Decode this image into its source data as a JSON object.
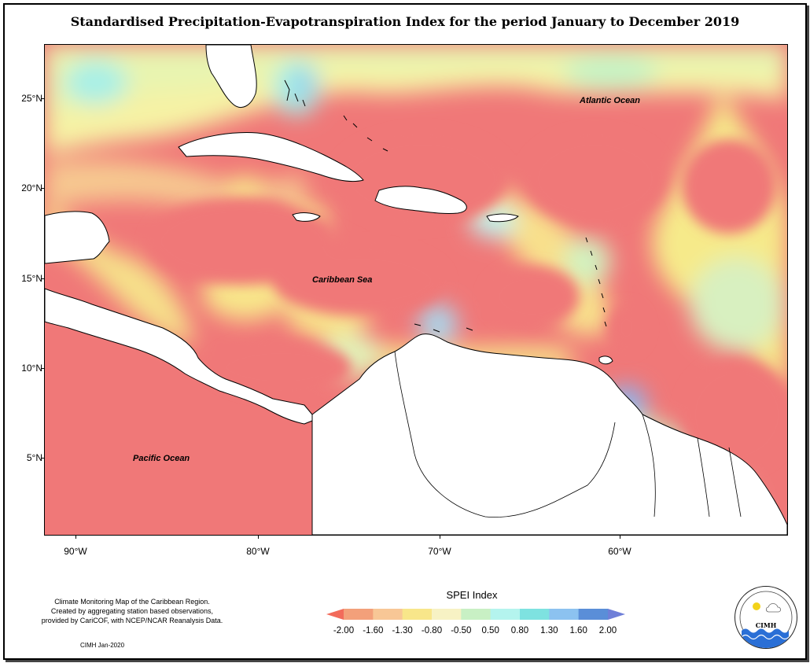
{
  "title": "Standardised Precipitation-Evapotranspiration Index for the period January to December 2019",
  "axes": {
    "lat_ticks": [
      "25°N",
      "20°N",
      "15°N",
      "10°N",
      "5°N"
    ],
    "lon_ticks": [
      "90°W",
      "80°W",
      "70°W",
      "60°W"
    ]
  },
  "map_labels": {
    "atlantic": "Atlantic Ocean",
    "caribbean": "Caribbean Sea",
    "pacific": "Pacific Ocean"
  },
  "caption": {
    "line1": "Climate Monitoring Map of the Caribbean Region.",
    "line2": "Created by aggregating station based observations,",
    "line3": "provided by CariCOF, with NCEP/NCAR Reanalysis Data.",
    "credit": "CIMH Jan-2020"
  },
  "legend": {
    "title": "SPEI Index",
    "values": [
      "-2.00",
      "-1.60",
      "-1.30",
      "-0.80",
      "-0.50",
      "0.50",
      "0.80",
      "1.30",
      "1.60",
      "2.00"
    ],
    "colors": [
      "#f26b5b",
      "#f3a07a",
      "#f8c796",
      "#f8e68a",
      "#f7f2c4",
      "#c8f0c4",
      "#b4f4ee",
      "#7ee2e0",
      "#8cc2f0",
      "#5a8ed8",
      "#6f7fd8"
    ]
  },
  "logo": {
    "text": "CIMH",
    "colors": {
      "sun": "#f2d21a",
      "water": "#2a6fd6"
    }
  }
}
